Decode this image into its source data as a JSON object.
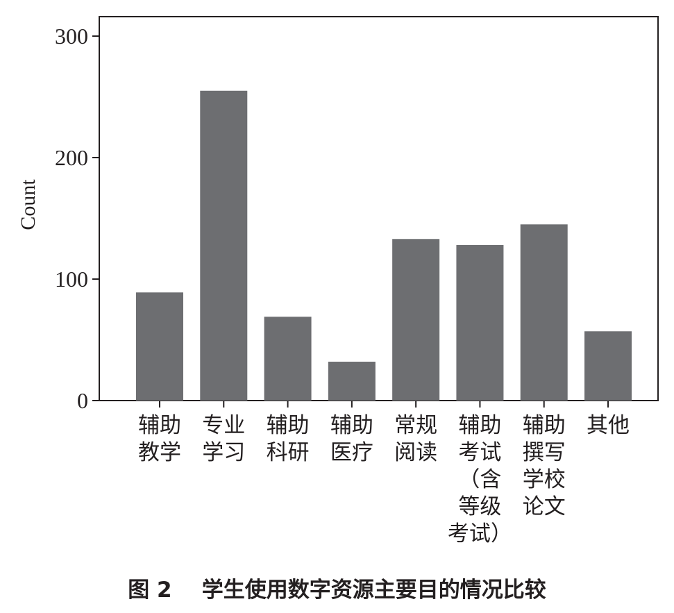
{
  "caption": "图 2    学生使用数字资源主要目的情况比较",
  "chart_data": {
    "type": "bar",
    "title": "",
    "xlabel": "",
    "ylabel": "Count",
    "ylim": [
      0,
      320
    ],
    "yticks": [
      0,
      100,
      200,
      300
    ],
    "grid": false,
    "bar_color": "#6d6e71",
    "categories": [
      [
        "辅助",
        "教学"
      ],
      [
        "专业",
        "学习"
      ],
      [
        "辅助",
        "科研"
      ],
      [
        "辅助",
        "医疗"
      ],
      [
        "常规",
        "阅读"
      ],
      [
        "辅助",
        "考试",
        "（含",
        "等级",
        "考试）"
      ],
      [
        "辅助",
        "撰写",
        "学校",
        "论文"
      ],
      [
        "其他"
      ]
    ],
    "values": [
      89,
      255,
      69,
      32,
      133,
      128,
      145,
      57
    ]
  }
}
